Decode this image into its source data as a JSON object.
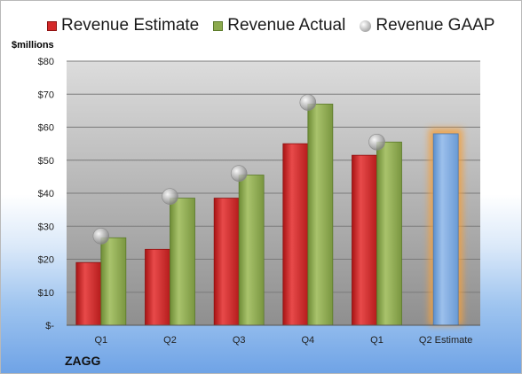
{
  "legend": {
    "estimate_label": "Revenue Estimate",
    "actual_label": "Revenue Actual",
    "gaap_label": "Revenue GAAP"
  },
  "y_unit_label": "$millions",
  "footer_label": "ZAGG",
  "colors": {
    "estimate": "#d42a2a",
    "actual": "#8caa4e",
    "gaap": "#b0b0b0",
    "projected": "#7aa6d9",
    "projected_glow": "#f2a040"
  },
  "chart_data": {
    "type": "bar",
    "categories": [
      "Q1",
      "Q2",
      "Q3",
      "Q4",
      "Q1",
      "Q2 Estimate"
    ],
    "series": [
      {
        "name": "Revenue Estimate",
        "values": [
          19,
          23,
          38.5,
          55,
          51.5,
          null
        ]
      },
      {
        "name": "Revenue Actual",
        "values": [
          26.5,
          38.5,
          45.5,
          67,
          55.5,
          null
        ]
      },
      {
        "name": "Revenue GAAP",
        "values": [
          27,
          39,
          46,
          67.5,
          55.5,
          null
        ]
      }
    ],
    "projected": {
      "category": "Q2 Estimate",
      "value": 58
    },
    "ylabel": "$millions",
    "ylim": [
      0,
      80
    ],
    "yticks": [
      0,
      10,
      20,
      30,
      40,
      50,
      60,
      70,
      80
    ],
    "ytick_labels": [
      "$-",
      "$10",
      "$20",
      "$30",
      "$40",
      "$50",
      "$60",
      "$70",
      "$80"
    ],
    "grid": true,
    "legend_position": "top"
  }
}
